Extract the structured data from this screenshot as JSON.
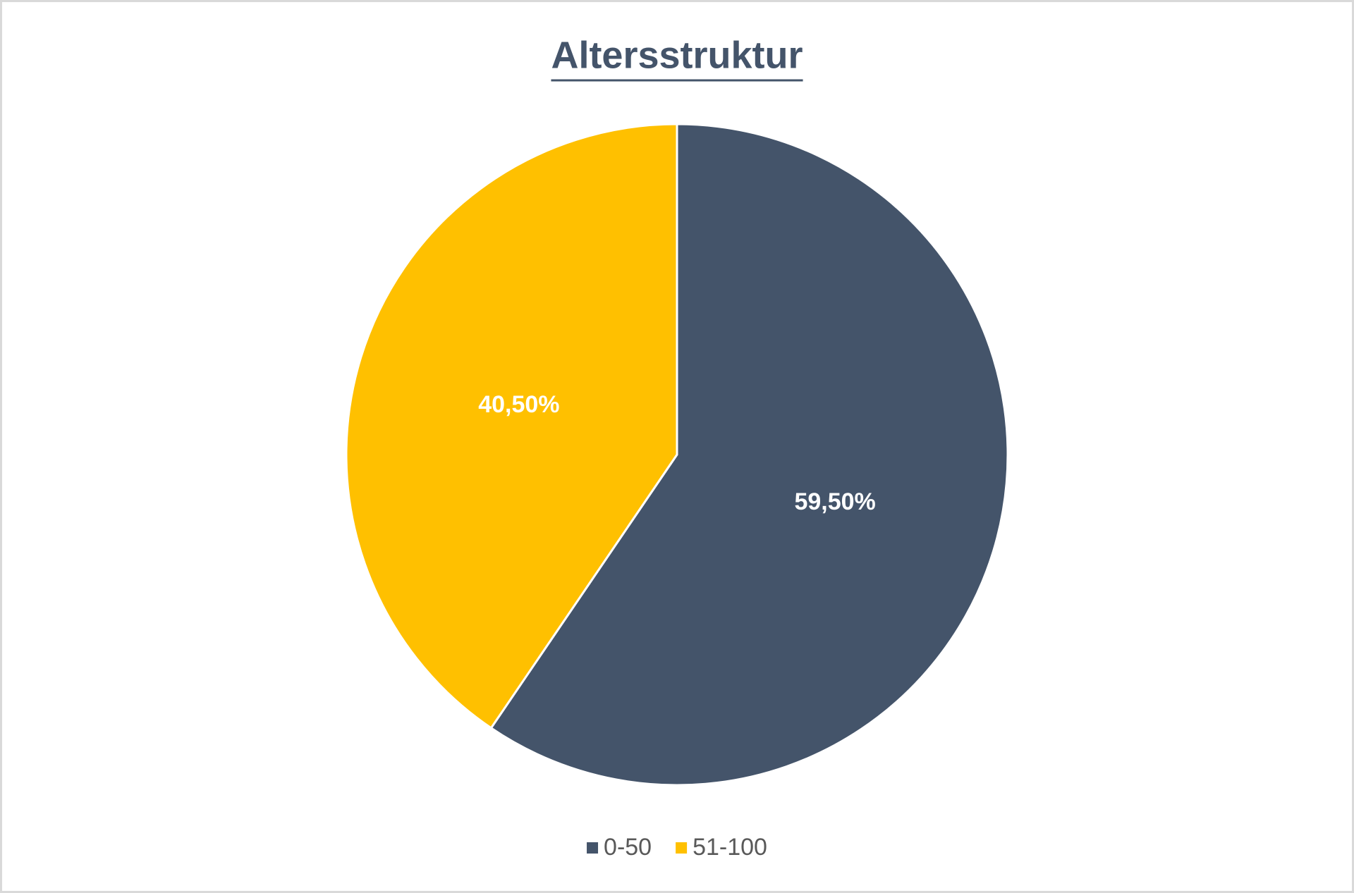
{
  "chart_data": {
    "type": "pie",
    "title": "Altersstruktur",
    "categories": [
      "0-50",
      "51-100"
    ],
    "values": [
      59.5,
      40.5
    ],
    "value_labels": [
      "59,50%",
      "40,50%"
    ],
    "colors": [
      "#44546a",
      "#ffc000"
    ],
    "legend": "bottom"
  }
}
